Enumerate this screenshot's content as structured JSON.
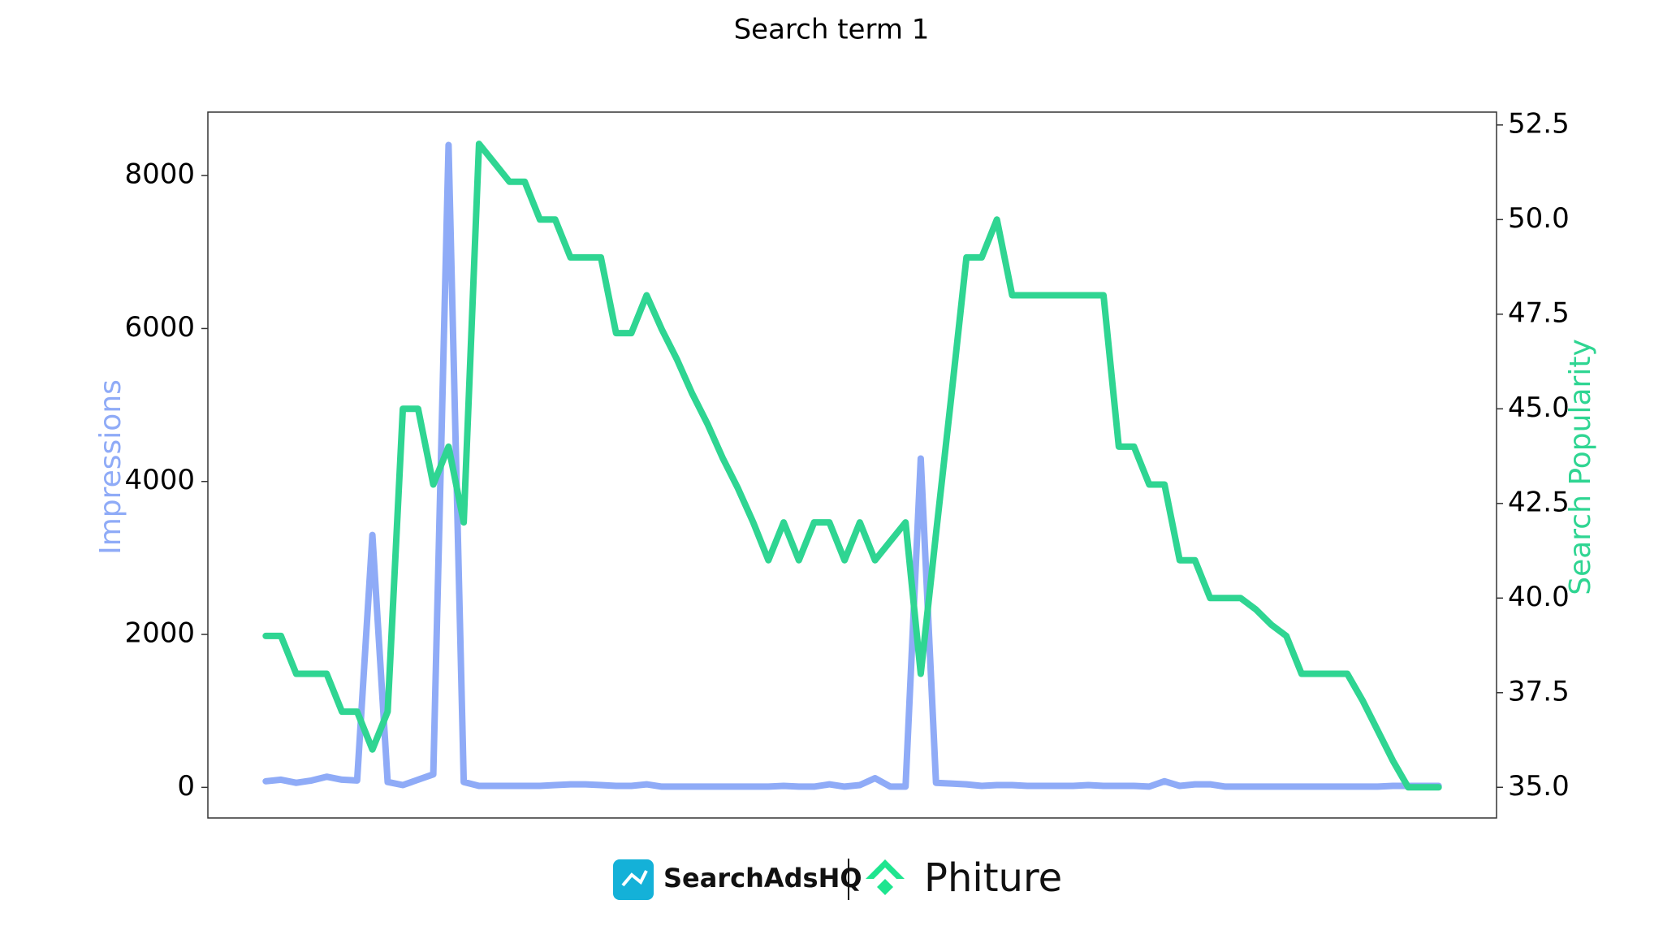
{
  "chart_data": {
    "type": "line",
    "title": "Search term 1",
    "ylabel": "Impressions",
    "y2label": "Search Popularity",
    "categories": [
      null,
      null,
      null,
      null,
      null,
      null,
      null,
      null,
      null,
      null,
      null,
      null,
      null,
      null,
      null,
      null,
      null,
      null,
      null,
      null,
      null,
      null,
      null,
      null,
      null,
      null,
      null,
      null,
      null,
      null,
      null,
      null,
      null,
      null,
      null,
      null,
      null,
      null,
      null,
      null,
      null,
      null,
      null,
      null,
      null,
      null,
      null,
      null,
      null,
      null,
      null,
      null,
      null,
      null,
      null,
      null,
      null,
      null,
      null,
      null,
      null,
      null,
      null,
      null,
      null,
      null,
      null,
      null,
      null,
      null,
      null,
      null,
      null,
      null,
      null,
      null,
      null,
      null
    ],
    "series": [
      {
        "name": "Impressions",
        "color": "#8fabf7",
        "values": [
          80,
          100,
          60,
          90,
          140,
          100,
          90,
          3300,
          70,
          30,
          100,
          170,
          8400,
          70,
          20,
          20,
          20,
          20,
          20,
          30,
          40,
          40,
          30,
          20,
          20,
          40,
          10,
          10,
          10,
          10,
          10,
          10,
          10,
          10,
          20,
          10,
          10,
          40,
          10,
          30,
          120,
          10,
          10,
          4300,
          60,
          50,
          40,
          20,
          30,
          30,
          20,
          20,
          20,
          20,
          30,
          20,
          20,
          20,
          10,
          80,
          20,
          40,
          40,
          10,
          10,
          10,
          10,
          10,
          10,
          10,
          10,
          10,
          10,
          10,
          20,
          20,
          20,
          20
        ]
      },
      {
        "name": "Search Popularity",
        "color": "#2fd592",
        "axis": "y2",
        "values": [
          39,
          39,
          38,
          38,
          38,
          37,
          37,
          36,
          37,
          45,
          45,
          43,
          44,
          42,
          52,
          51.5,
          51,
          51,
          50,
          50,
          49,
          49,
          49,
          47,
          47,
          48,
          47.1,
          46.3,
          45.4,
          44.6,
          43.7,
          42.9,
          42,
          41,
          42,
          41,
          42,
          42,
          41,
          42,
          41,
          41.5,
          42,
          38,
          41.7,
          45.3,
          49,
          49,
          50,
          48,
          48,
          48,
          48,
          48,
          48,
          48,
          44,
          44,
          43,
          43,
          41,
          41,
          40,
          40,
          40,
          39.7,
          39.3,
          39,
          38,
          38,
          38,
          38,
          37.3,
          36.5,
          35.7,
          35,
          35,
          35
        ]
      }
    ],
    "ylim": [
      -400,
      8830
    ],
    "yticks": [
      0,
      2000,
      4000,
      6000,
      8000
    ],
    "y2lim": [
      34.19,
      52.84
    ],
    "y2ticks": [
      {
        "value": 35,
        "label": "35.0"
      },
      {
        "value": 37.5,
        "label": "37.5"
      },
      {
        "value": 40,
        "label": "40.0"
      },
      {
        "value": 42.5,
        "label": "42.5"
      },
      {
        "value": 45,
        "label": "45.0"
      },
      {
        "value": 47.5,
        "label": "47.5"
      },
      {
        "value": 50,
        "label": "50.0"
      },
      {
        "value": 52.5,
        "label": "52.5"
      }
    ]
  },
  "footer": {
    "brand1": "SearchAdsHQ",
    "brand2": "Phiture"
  }
}
